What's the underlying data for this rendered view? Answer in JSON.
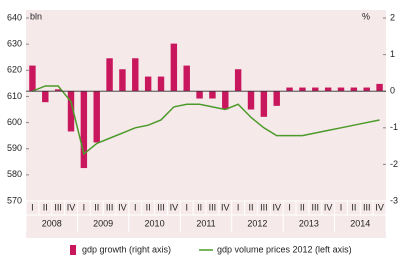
{
  "chart_data": {
    "type": "bar-line",
    "y_label": "bln",
    "y2_label": "%",
    "categories": [
      "I",
      "II",
      "III",
      "IV",
      "I",
      "II",
      "III",
      "IV",
      "I",
      "II",
      "III",
      "IV",
      "I",
      "II",
      "III",
      "IV",
      "I",
      "II",
      "III",
      "IV",
      "I",
      "II",
      "III",
      "IV",
      "I",
      "II",
      "III",
      "IV"
    ],
    "groups": [
      "2008",
      "2009",
      "2010",
      "2011",
      "2012",
      "2013",
      "2014"
    ],
    "series": [
      {
        "name": "gdp growth (right axis)",
        "kind": "bar",
        "axis": "y2",
        "color": "#c8175d",
        "values": [
          0.7,
          -0.3,
          0.05,
          -1.1,
          -2.1,
          -1.4,
          0.9,
          0.6,
          0.9,
          0.4,
          0.4,
          1.3,
          0.7,
          -0.2,
          -0.2,
          -0.5,
          0.6,
          -0.5,
          -0.7,
          -0.4,
          0.1,
          0.1,
          0.1,
          0.1,
          0.1,
          0.1,
          0.1,
          0.2
        ]
      },
      {
        "name": "gdp volume prices 2012 (left axis)",
        "kind": "line",
        "color": "#4c9a2a",
        "values": [
          612,
          614,
          614,
          608,
          588,
          592,
          594,
          596,
          598,
          599,
          601,
          606,
          607,
          607,
          606,
          605,
          607,
          602,
          598,
          595,
          595,
          595,
          596,
          597,
          598,
          599,
          600,
          601
        ]
      }
    ],
    "ylim": [
      570,
      640
    ],
    "yticks": [
      570,
      580,
      590,
      600,
      610,
      620,
      630,
      640
    ],
    "y2lim": [
      -3,
      2
    ],
    "y2ticks": [
      -3,
      -2,
      -1,
      0,
      1,
      2
    ]
  }
}
